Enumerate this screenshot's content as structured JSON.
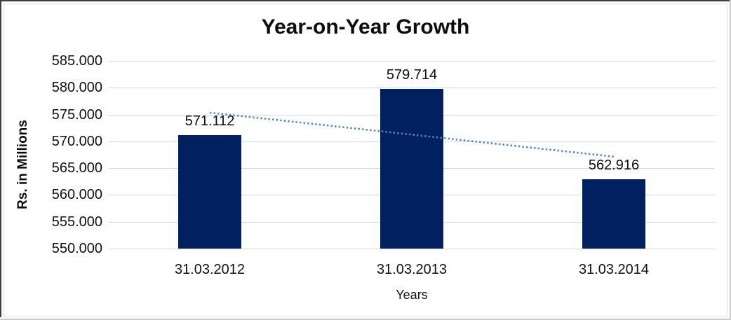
{
  "chart_data": {
    "type": "bar",
    "title": "Year-on-Year Growth",
    "ylabel": "Rs. in Millions",
    "xlabel": "Years",
    "categories": [
      "31.03.2012",
      "31.03.2013",
      "31.03.2014"
    ],
    "values": [
      571.112,
      579.714,
      562.916
    ],
    "data_labels": [
      "571.112",
      "579.714",
      "562.916"
    ],
    "ylim": [
      550,
      585
    ],
    "yticks": [
      {
        "value": 585,
        "label": "585.000"
      },
      {
        "value": 580,
        "label": "580.000"
      },
      {
        "value": 575,
        "label": "575.000"
      },
      {
        "value": 570,
        "label": "570.000"
      },
      {
        "value": 565,
        "label": "565.000"
      },
      {
        "value": 560,
        "label": "560.000"
      },
      {
        "value": 555,
        "label": "555.000"
      },
      {
        "value": 550,
        "label": "550.000"
      }
    ],
    "grid": true,
    "legend": "none",
    "bar_color": "#002060",
    "gridline_color": "#d9d9d9",
    "trendline": {
      "type": "linear",
      "style": "dotted",
      "color": "#4f86c6",
      "start_value": 575.35,
      "end_value": 567.15
    }
  }
}
